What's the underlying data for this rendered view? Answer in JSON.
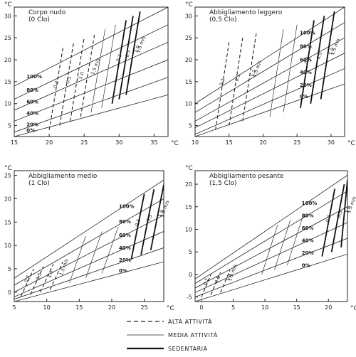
{
  "legend": [
    {
      "style": "dashed",
      "label": "ALTA ATTIVITÀ"
    },
    {
      "style": "thin",
      "label": "MEDIA ATTIVITÀ"
    },
    {
      "style": "thick",
      "label": "SEDENTARIA"
    }
  ],
  "chart_data": [
    {
      "type": "line",
      "title": "Corpo nudo",
      "subtitle": "(0 Clo)",
      "unit": "°C",
      "xlim": [
        15,
        37
      ],
      "ylim": [
        2.5,
        32
      ],
      "xticks": [
        "15",
        "20",
        "25",
        "30",
        "35"
      ],
      "yticks": [
        "5",
        "10",
        "15",
        "20",
        "25",
        "30"
      ],
      "rh_series": [
        {
          "name": "100%",
          "points": [
            [
              15,
              14
            ],
            [
              37,
              32
            ]
          ]
        },
        {
          "name": "80%",
          "points": [
            [
              15,
              11
            ],
            [
              37,
              28
            ]
          ]
        },
        {
          "name": "60%",
          "points": [
            [
              15,
              8.5
            ],
            [
              37,
              24
            ]
          ]
        },
        {
          "name": "40%",
          "points": [
            [
              15,
              6
            ],
            [
              37,
              20
            ]
          ]
        },
        {
          "name": "20%",
          "points": [
            [
              15,
              3.5
            ],
            [
              37,
              16
            ]
          ]
        },
        {
          "name": "0%",
          "points": [
            [
              15,
              2.5
            ],
            [
              37,
              12
            ]
          ]
        }
      ],
      "activity_lines": {
        "dashed": [
          [
            [
              20,
              4
            ],
            [
              22,
              23
            ]
          ],
          [
            [
              21.5,
              5
            ],
            [
              23.5,
              24
            ]
          ],
          [
            [
              23,
              6
            ],
            [
              25,
              25
            ]
          ],
          [
            [
              24.5,
              7
            ],
            [
              26.5,
              26
            ]
          ]
        ],
        "thin": [
          [
            [
              26,
              8
            ],
            [
              28,
              27
            ]
          ],
          [
            [
              27.5,
              9
            ],
            [
              29.5,
              28
            ]
          ]
        ],
        "thick": [
          [
            [
              29,
              10
            ],
            [
              31,
              29
            ]
          ],
          [
            [
              30,
              11
            ],
            [
              32,
              30
            ]
          ],
          [
            [
              31,
              12
            ],
            [
              33,
              31
            ]
          ]
        ]
      },
      "annotations": [
        "0.2",
        "0.5",
        "1.0",
        "1.5 m/s",
        "0.2",
        "0.5",
        "1.0",
        "1.5 m/s"
      ]
    },
    {
      "type": "line",
      "title": "Abbigliamento leggero",
      "subtitle": "(0,5 Clo)",
      "unit": "°C",
      "xlim": [
        10,
        32
      ],
      "ylim": [
        2.5,
        32
      ],
      "xticks": [
        "10",
        "15",
        "20",
        "25",
        "30"
      ],
      "yticks": [
        "5",
        "10",
        "15",
        "20",
        "25",
        "30"
      ],
      "rh_series": [
        {
          "name": "100%",
          "points": [
            [
              10,
              10
            ],
            [
              32,
              32
            ]
          ]
        },
        {
          "name": "80%",
          "points": [
            [
              10,
              8
            ],
            [
              32,
              28.5
            ]
          ]
        },
        {
          "name": "60%",
          "points": [
            [
              10,
              6
            ],
            [
              32,
              25
            ]
          ]
        },
        {
          "name": "40%",
          "points": [
            [
              10,
              4.5
            ],
            [
              32,
              21.5
            ]
          ]
        },
        {
          "name": "20%",
          "points": [
            [
              10,
              3
            ],
            [
              32,
              18
            ]
          ]
        },
        {
          "name": "0%",
          "points": [
            [
              10,
              2.5
            ],
            [
              32,
              14.5
            ]
          ]
        }
      ],
      "activity_lines": {
        "dashed": [
          [
            [
              13,
              4
            ],
            [
              15,
              24
            ]
          ],
          [
            [
              15,
              5
            ],
            [
              17,
              25
            ]
          ],
          [
            [
              17,
              6
            ],
            [
              19,
              26
            ]
          ]
        ],
        "thin": [
          [
            [
              21,
              7
            ],
            [
              23,
              27
            ]
          ],
          [
            [
              23,
              8
            ],
            [
              25,
              28
            ]
          ]
        ],
        "thick": [
          [
            [
              25.5,
              9
            ],
            [
              27.5,
              29
            ]
          ],
          [
            [
              27,
              10
            ],
            [
              29,
              30
            ]
          ],
          [
            [
              28.5,
              11
            ],
            [
              30.5,
              31
            ]
          ]
        ]
      },
      "annotations": [
        "0.2",
        "0.5",
        "1.0",
        "1.5 m/s",
        "0.2",
        "0.5",
        "1.0",
        "1.5 m/s"
      ]
    },
    {
      "type": "line",
      "title": "Abbigliamento medio",
      "subtitle": "(1 Clo)",
      "unit": "°C",
      "xlim": [
        5,
        28
      ],
      "ylim": [
        -2,
        26
      ],
      "xticks": [
        "5",
        "10",
        "15",
        "20",
        "25"
      ],
      "yticks": [
        "0",
        "5",
        "10",
        "15",
        "20",
        "25"
      ],
      "rh_series": [
        {
          "name": "100%",
          "points": [
            [
              5,
              3
            ],
            [
              28,
              24
            ]
          ]
        },
        {
          "name": "80%",
          "points": [
            [
              5,
              1.5
            ],
            [
              28,
              20
            ]
          ]
        },
        {
          "name": "60%",
          "points": [
            [
              5,
              0
            ],
            [
              28,
              16.5
            ]
          ]
        },
        {
          "name": "40%",
          "points": [
            [
              5,
              -1
            ],
            [
              28,
              13
            ]
          ]
        },
        {
          "name": "20%",
          "points": [
            [
              5,
              -1.5
            ],
            [
              28,
              9.5
            ]
          ]
        },
        {
          "name": "0%",
          "points": [
            [
              5,
              -2
            ],
            [
              28,
              6.5
            ]
          ]
        }
      ],
      "activity_lines": {
        "dashed": [
          [
            [
              6,
              -1
            ],
            [
              8,
              5
            ]
          ],
          [
            [
              7.5,
              -0.5
            ],
            [
              9.5,
              5.5
            ]
          ],
          [
            [
              9,
              0
            ],
            [
              11,
              6
            ]
          ],
          [
            [
              10.5,
              0.5
            ],
            [
              12.5,
              6.5
            ]
          ]
        ],
        "thin": [
          [
            [
              13.5,
              2
            ],
            [
              16,
              12
            ]
          ],
          [
            [
              16,
              3
            ],
            [
              18.5,
              13
            ]
          ],
          [
            [
              18.5,
              4
            ],
            [
              21,
              14
            ]
          ]
        ],
        "thick": [
          [
            [
              23,
              7
            ],
            [
              25,
              21
            ]
          ],
          [
            [
              24.5,
              8
            ],
            [
              26.5,
              22
            ]
          ],
          [
            [
              26,
              9
            ],
            [
              28,
              23
            ]
          ]
        ]
      },
      "annotations": [
        "0.2",
        "0.5",
        "1.0",
        "1.5 m/s",
        "0.2",
        "0.5",
        "1.0",
        "1.5 m/s"
      ]
    },
    {
      "type": "line",
      "title": "Abbigliamento pesante",
      "subtitle": "(1,5 Clo)",
      "unit": "°C",
      "xlim": [
        -1,
        23
      ],
      "ylim": [
        -6,
        23
      ],
      "xticks": [
        "0",
        "5",
        "10",
        "15",
        "20"
      ],
      "yticks": [
        "-5",
        "0",
        "5",
        "10",
        "15",
        "20"
      ],
      "rh_series": [
        {
          "name": "100%",
          "points": [
            [
              -1,
              -1
            ],
            [
              23,
              22
            ]
          ]
        },
        {
          "name": "80%",
          "points": [
            [
              -1,
              -2
            ],
            [
              23,
              18.5
            ]
          ]
        },
        {
          "name": "60%",
          "points": [
            [
              -1,
              -3
            ],
            [
              23,
              15
            ]
          ]
        },
        {
          "name": "40%",
          "points": [
            [
              -1,
              -4
            ],
            [
              23,
              11.5
            ]
          ]
        },
        {
          "name": "20%",
          "points": [
            [
              -1,
              -5
            ],
            [
              23,
              8
            ]
          ]
        },
        {
          "name": "0%",
          "points": [
            [
              -1,
              -6
            ],
            [
              23,
              4.5
            ]
          ]
        }
      ],
      "activity_lines": {
        "dashed": [
          [
            [
              0,
              -5
            ],
            [
              1.5,
              0
            ]
          ],
          [
            [
              1.5,
              -4.5
            ],
            [
              3,
              0.5
            ]
          ],
          [
            [
              3,
              -4
            ],
            [
              4.5,
              1
            ]
          ]
        ],
        "thin": [
          [
            [
              9.5,
              0
            ],
            [
              12,
              11
            ]
          ],
          [
            [
              11.5,
              1
            ],
            [
              14,
              12
            ]
          ],
          [
            [
              13.5,
              2
            ],
            [
              16,
              13
            ]
          ]
        ],
        "thick": [
          [
            [
              19,
              4
            ],
            [
              21,
              19
            ]
          ],
          [
            [
              20.5,
              5
            ],
            [
              22.5,
              20
            ]
          ],
          [
            [
              22,
              6
            ],
            [
              23,
              21
            ]
          ]
        ]
      },
      "annotations": [
        "0.2",
        "0.5",
        "1.0",
        "1.5 m/s",
        "0.2",
        "0.5",
        "1.0",
        "1.5 m/s"
      ]
    }
  ]
}
